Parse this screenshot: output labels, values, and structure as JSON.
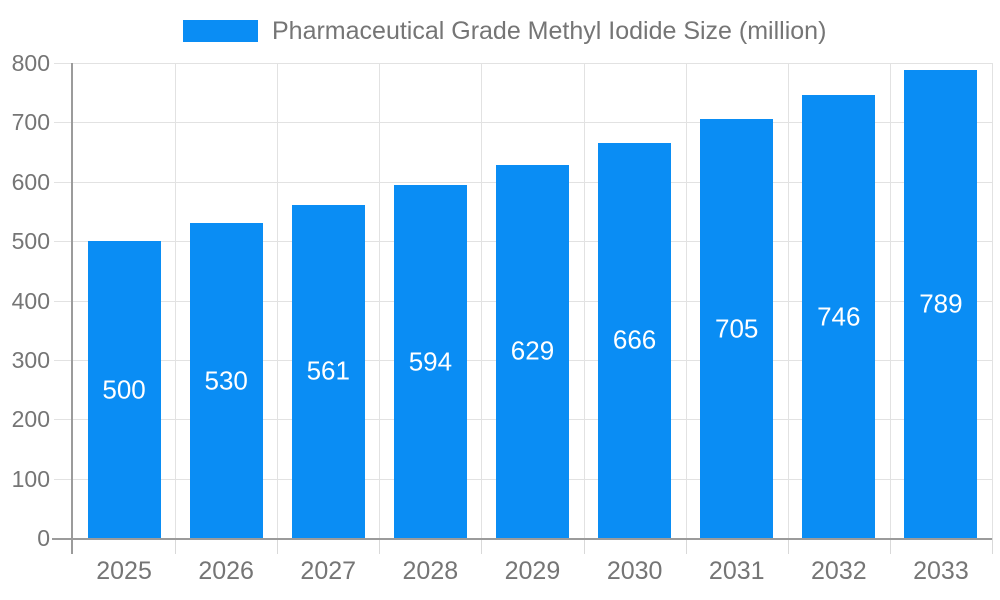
{
  "legend": {
    "position": "top"
  },
  "chart_data": {
    "type": "bar",
    "title": "Pharmaceutical Grade Methyl Iodide Size (million)",
    "categories": [
      "2025",
      "2026",
      "2027",
      "2028",
      "2029",
      "2030",
      "2031",
      "2032",
      "2033"
    ],
    "values": [
      500,
      530,
      561,
      594,
      629,
      666,
      705,
      746,
      789
    ],
    "xlabel": "",
    "ylabel": "",
    "ylim": [
      0,
      800
    ],
    "yticks": [
      0,
      100,
      200,
      300,
      400,
      500,
      600,
      700,
      800
    ],
    "grid": true,
    "legend_position": "top",
    "colors": {
      "bar": "#0a8df4",
      "bar_label": "#ffffff",
      "axis_text": "#757575",
      "grid_line": "#e2e2e2",
      "axis_line": "#9b9b9b"
    }
  }
}
